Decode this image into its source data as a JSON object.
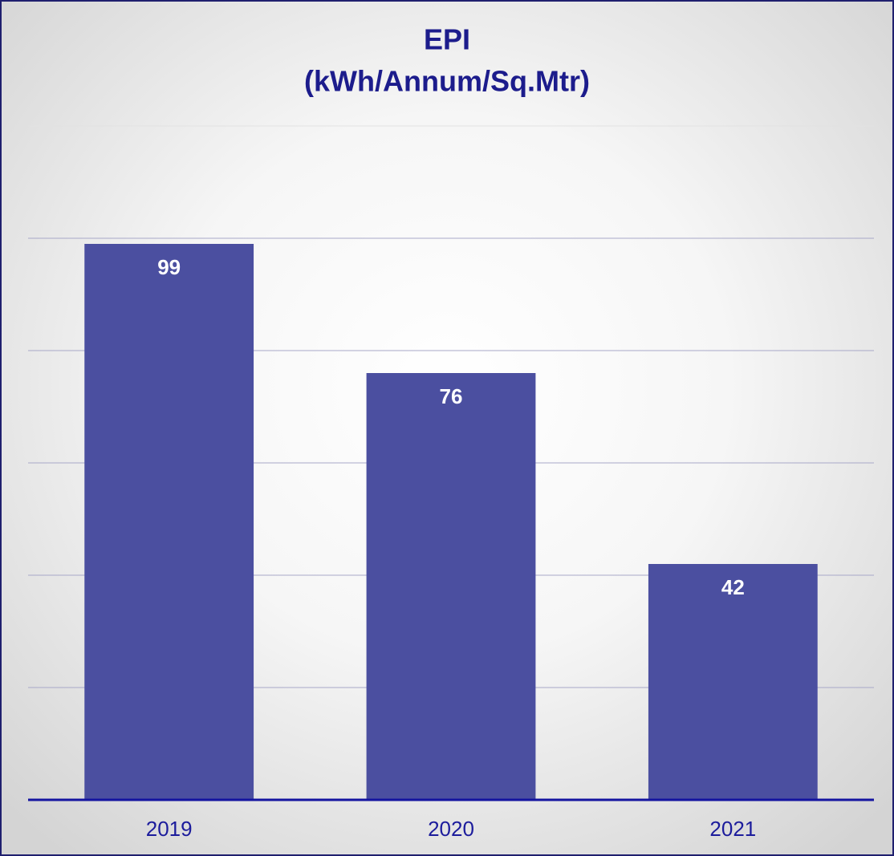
{
  "chart_data": {
    "type": "bar",
    "title": "EPI",
    "subtitle": "(kWh/Annum/Sq.Mtr)",
    "categories": [
      "2019",
      "2020",
      "2021"
    ],
    "values": [
      99,
      76,
      42
    ],
    "color": "#4b4fa0",
    "ylim": [
      0,
      120
    ],
    "yticks": [
      0,
      20,
      40,
      60,
      80,
      100,
      120
    ],
    "grid": true
  }
}
